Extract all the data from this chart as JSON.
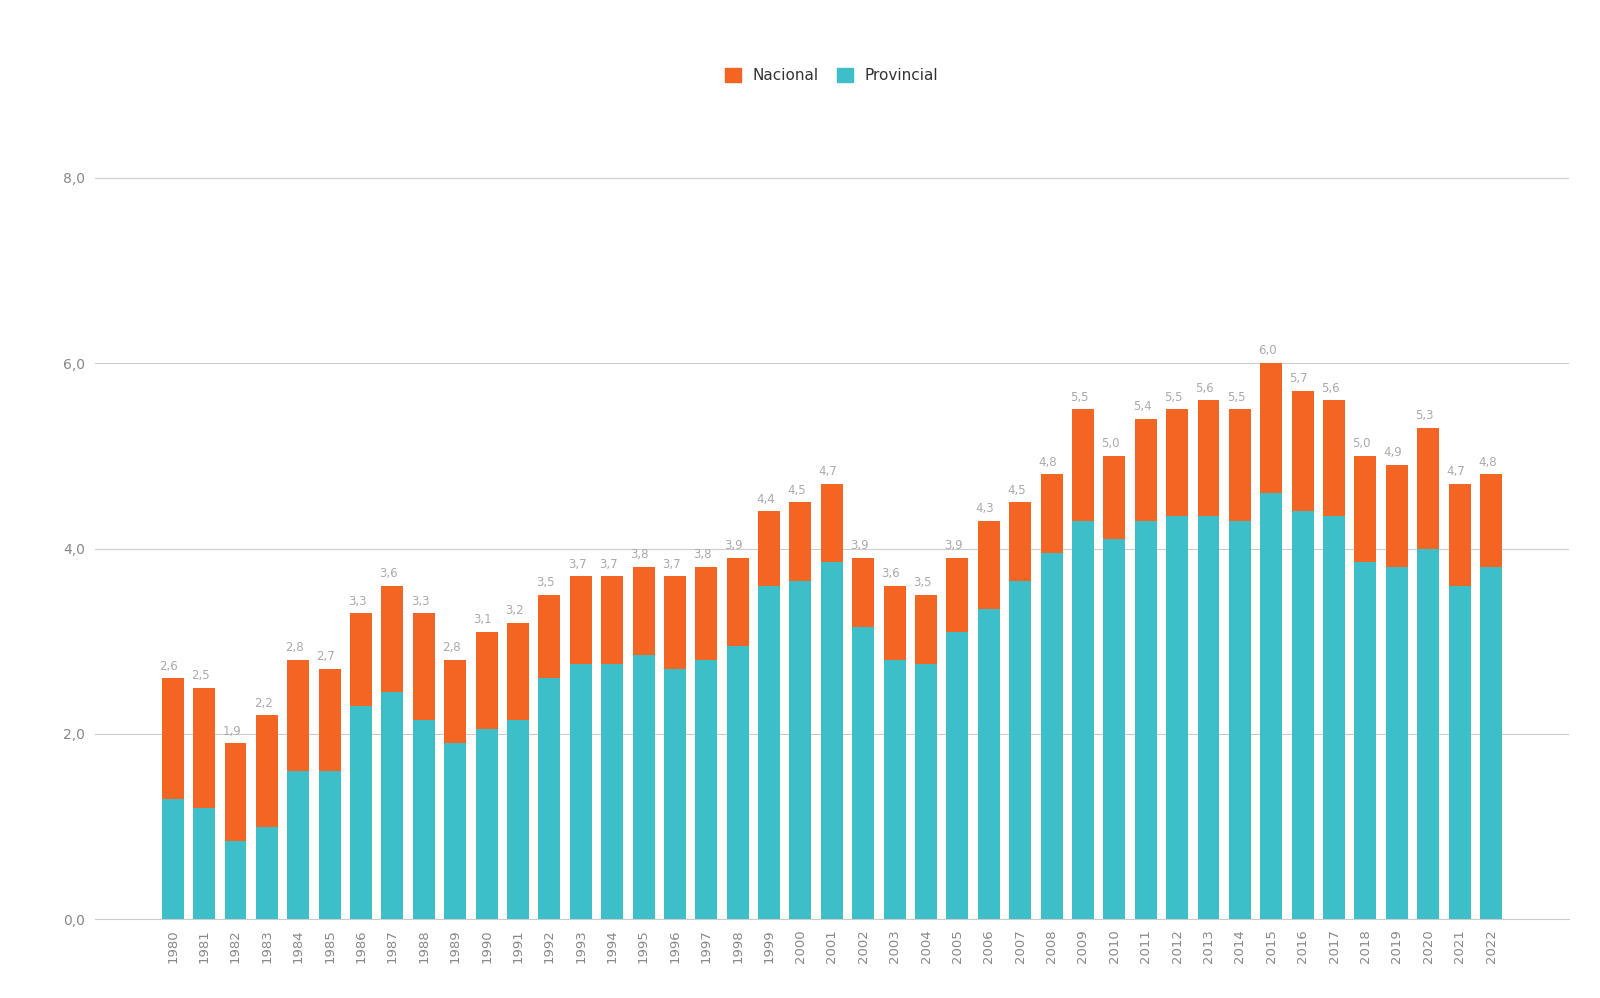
{
  "years": [
    1980,
    1981,
    1982,
    1983,
    1984,
    1985,
    1986,
    1987,
    1988,
    1989,
    1990,
    1991,
    1992,
    1993,
    1994,
    1995,
    1996,
    1997,
    1998,
    1999,
    2000,
    2001,
    2002,
    2003,
    2004,
    2005,
    2006,
    2007,
    2008,
    2009,
    2010,
    2011,
    2012,
    2013,
    2014,
    2015,
    2016,
    2017,
    2018,
    2019,
    2020,
    2021,
    2022
  ],
  "total": [
    2.6,
    2.5,
    1.9,
    2.2,
    2.8,
    2.7,
    3.3,
    3.6,
    3.3,
    2.8,
    3.1,
    3.2,
    3.5,
    3.7,
    3.7,
    3.8,
    3.7,
    3.8,
    3.9,
    4.4,
    4.5,
    4.7,
    3.9,
    3.6,
    3.5,
    3.9,
    4.3,
    4.5,
    4.8,
    5.5,
    5.0,
    5.4,
    5.5,
    5.6,
    5.5,
    6.0,
    5.7,
    5.6,
    5.0,
    4.9,
    5.3,
    4.7,
    4.8
  ],
  "provincial": [
    1.3,
    1.2,
    0.85,
    1.0,
    1.6,
    1.6,
    2.3,
    2.45,
    2.15,
    1.9,
    2.05,
    2.15,
    2.6,
    2.75,
    2.75,
    2.85,
    2.7,
    2.8,
    2.95,
    3.6,
    3.65,
    3.85,
    3.15,
    2.8,
    2.75,
    3.1,
    3.35,
    3.65,
    3.95,
    4.3,
    4.1,
    4.3,
    4.35,
    4.35,
    4.3,
    4.6,
    4.4,
    4.35,
    3.85,
    3.8,
    4.0,
    3.6,
    3.8
  ],
  "color_national": "#f26522",
  "color_provincial": "#3dbfc9",
  "background_color": "#ffffff",
  "label_color": "#aaaaaa",
  "yticks": [
    0.0,
    2.0,
    4.0,
    6.0,
    8.0
  ],
  "ytick_labels": [
    "0,0",
    "2,0",
    "4,0",
    "6,0",
    "8,0"
  ],
  "ylim": [
    0,
    8.8
  ],
  "legend_nacional": "Nacional",
  "legend_provincial": "Provincial",
  "bar_width": 0.7,
  "label_fontsize": 8.5,
  "tick_fontsize": 10
}
